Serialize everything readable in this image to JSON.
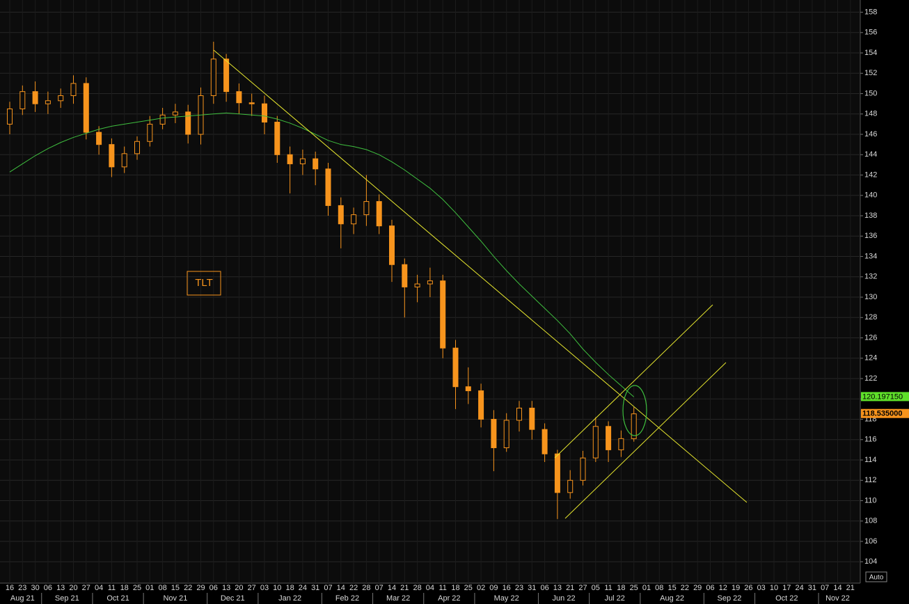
{
  "chart_data": {
    "type": "candlestick",
    "annotation": "TLT",
    "button": "Auto",
    "ylim": [
      101.9,
      159.2
    ],
    "yticks": [
      104,
      106,
      108,
      110,
      112,
      114,
      116,
      118,
      120,
      122,
      124,
      126,
      128,
      130,
      132,
      134,
      136,
      138,
      140,
      142,
      144,
      146,
      148,
      150,
      152,
      154,
      156,
      158
    ],
    "grid": true,
    "months": [
      {
        "label": "Aug 21",
        "days": [
          "16",
          "23",
          "30"
        ]
      },
      {
        "label": "Sep 21",
        "days": [
          "06",
          "13",
          "20",
          "27"
        ]
      },
      {
        "label": "Oct 21",
        "days": [
          "04",
          "11",
          "18",
          "25"
        ]
      },
      {
        "label": "Nov 21",
        "days": [
          "01",
          "08",
          "15",
          "22",
          "29"
        ]
      },
      {
        "label": "Dec 21",
        "days": [
          "06",
          "13",
          "20",
          "27"
        ]
      },
      {
        "label": "Jan 22",
        "days": [
          "03",
          "10",
          "18",
          "24",
          "31"
        ]
      },
      {
        "label": "Feb 22",
        "days": [
          "07",
          "14",
          "22",
          "28"
        ]
      },
      {
        "label": "Mar 22",
        "days": [
          "07",
          "14",
          "21",
          "28"
        ]
      },
      {
        "label": "Apr 22",
        "days": [
          "04",
          "11",
          "18",
          "25"
        ]
      },
      {
        "label": "May 22",
        "days": [
          "02",
          "09",
          "16",
          "23",
          "31"
        ]
      },
      {
        "label": "Jun 22",
        "days": [
          "06",
          "13",
          "21",
          "27"
        ]
      },
      {
        "label": "Jul 22",
        "days": [
          "05",
          "11",
          "18",
          "25"
        ]
      },
      {
        "label": "Aug 22",
        "days": [
          "01",
          "08",
          "15",
          "22",
          "29"
        ]
      },
      {
        "label": "Sep 22",
        "days": [
          "06",
          "12",
          "19",
          "26"
        ]
      },
      {
        "label": "Oct 22",
        "days": [
          "03",
          "10",
          "17",
          "24",
          "31"
        ]
      },
      {
        "label": "Nov 22",
        "days": [
          "07",
          "14",
          "21"
        ]
      }
    ],
    "candles": {
      "color": "#f7941d",
      "open": [
        147.0,
        148.5,
        150.2,
        149.0,
        149.3,
        149.8,
        151.0,
        146.2,
        145.0,
        142.8,
        144.1,
        145.3,
        147.0,
        147.9,
        148.2,
        146.0,
        149.8,
        153.4,
        150.2,
        149.1,
        149.0,
        147.2,
        144.0,
        143.1,
        143.6,
        142.6,
        139.0,
        137.2,
        138.1,
        139.4,
        137.0,
        133.2,
        131.0,
        131.3,
        131.6,
        125.0,
        121.2,
        120.8,
        118.0,
        115.2,
        117.9,
        119.1,
        117.0,
        114.6,
        110.8,
        112.0,
        114.2,
        117.3,
        115.0,
        116.1
      ],
      "high": [
        149.2,
        150.8,
        151.2,
        150.2,
        150.5,
        151.8,
        151.6,
        146.8,
        145.6,
        144.8,
        145.8,
        147.8,
        148.6,
        149.0,
        148.9,
        150.6,
        155.1,
        153.9,
        151.0,
        150.0,
        149.8,
        147.8,
        144.8,
        144.5,
        144.3,
        143.2,
        139.8,
        138.8,
        142.0,
        140.1,
        137.6,
        133.8,
        132.2,
        132.9,
        132.2,
        125.8,
        123.1,
        121.5,
        118.9,
        118.6,
        119.8,
        119.8,
        117.6,
        115.0,
        113.0,
        114.9,
        118.2,
        117.8,
        116.9,
        119.2
      ],
      "low": [
        146.0,
        147.9,
        148.2,
        148.0,
        148.6,
        149.0,
        145.5,
        144.0,
        141.8,
        142.2,
        143.5,
        144.8,
        146.5,
        147.1,
        145.1,
        145.0,
        149.0,
        149.2,
        148.0,
        147.8,
        146.0,
        143.2,
        140.2,
        142.0,
        141.0,
        138.0,
        134.8,
        136.2,
        137.0,
        136.2,
        131.5,
        128.0,
        129.5,
        130.0,
        124.0,
        119.0,
        119.5,
        117.2,
        112.9,
        114.8,
        116.8,
        116.0,
        113.8,
        108.2,
        110.2,
        111.5,
        113.8,
        113.8,
        114.3,
        115.8
      ],
      "close": [
        148.5,
        150.2,
        149.0,
        149.3,
        149.8,
        151.0,
        146.2,
        145.0,
        142.8,
        144.1,
        145.3,
        147.0,
        147.9,
        148.2,
        146.0,
        149.8,
        153.4,
        150.2,
        149.1,
        149.0,
        147.2,
        144.0,
        143.1,
        143.6,
        142.6,
        139.0,
        137.2,
        138.1,
        139.4,
        137.0,
        133.2,
        131.0,
        131.3,
        131.6,
        125.0,
        121.2,
        120.8,
        118.0,
        115.2,
        117.9,
        119.1,
        117.0,
        114.6,
        110.8,
        112.0,
        114.2,
        117.3,
        115.0,
        116.1,
        118.535
      ],
      "close_label": "118.535000"
    },
    "ma": {
      "color": "#3fbf3f",
      "values": [
        142.3,
        143.1,
        143.9,
        144.6,
        145.2,
        145.7,
        146.1,
        146.5,
        146.8,
        147.0,
        147.2,
        147.4,
        147.6,
        147.7,
        147.8,
        147.9,
        148.0,
        148.1,
        148.0,
        147.9,
        147.8,
        147.5,
        147.1,
        146.6,
        146.0,
        145.4,
        145.0,
        144.8,
        144.5,
        144.0,
        143.3,
        142.5,
        141.6,
        140.7,
        139.6,
        138.3,
        136.9,
        135.5,
        134.0,
        132.6,
        131.3,
        130.1,
        128.9,
        127.7,
        126.4,
        124.9,
        123.6,
        122.4,
        121.3,
        120.19715
      ],
      "label": "120.197150",
      "label_color": "#5fe02a"
    }
  }
}
